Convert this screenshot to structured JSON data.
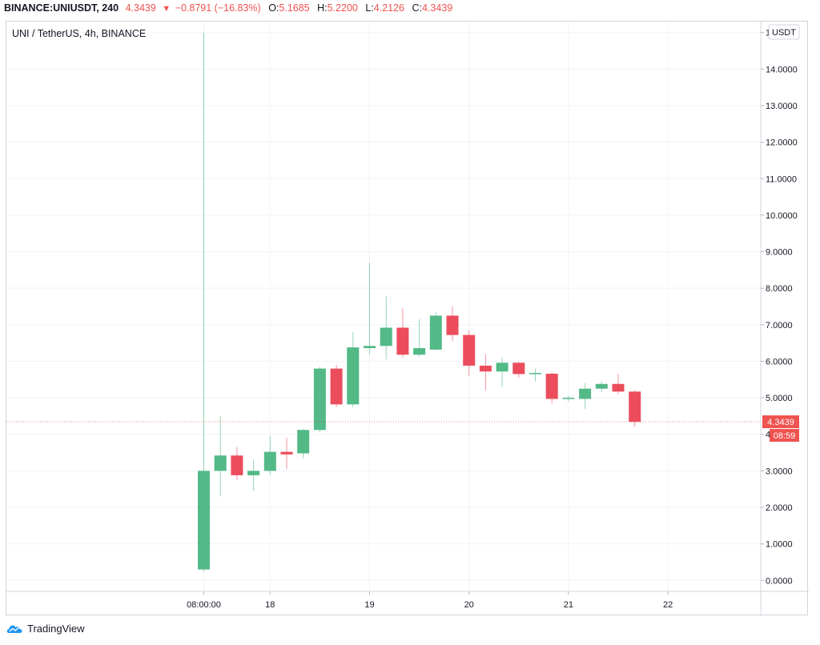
{
  "header": {
    "symbol": "BINANCE:UNIUSDT, 240",
    "last": "4.3439",
    "change": "−0.8791 (−16.83%)",
    "open_label": "O:",
    "open": "5.1685",
    "high_label": "H:",
    "high": "5.2200",
    "low_label": "L:",
    "low": "4.2126",
    "close_label": "C:",
    "close": "4.3439"
  },
  "legend": "UNI / TetherUS, 4h, BINANCE",
  "currency_button": "USDT",
  "price_badge": "4.3439",
  "countdown_badge": "08:59",
  "footer": {
    "brand": "TradingView",
    "logo_icon": "tradingview-logo-icon"
  },
  "colors": {
    "up": "#53b987",
    "down": "#eb4d5c",
    "grid": "#f0f3fa",
    "axis_text": "#131722",
    "badge": "#ef5350"
  },
  "chart_data": {
    "type": "candlestick",
    "symbol": "UNI / TetherUS",
    "interval": "4h",
    "exchange": "BINANCE",
    "ylim": [
      -0.3,
      15.3
    ],
    "y_ticks": [
      0,
      1,
      2,
      3,
      4,
      5,
      6,
      7,
      8,
      9,
      10,
      11,
      12,
      13,
      14,
      15
    ],
    "y_tick_labels": [
      "0.0000",
      "1.0000",
      "2.0000",
      "3.0000",
      "4.0000",
      "5.0000",
      "6.0000",
      "7.0000",
      "8.0000",
      "9.0000",
      "10.0000",
      "11.0000",
      "12.0000",
      "13.0000",
      "14.0000",
      "15.0000"
    ],
    "x_ticks": [
      {
        "index": 0,
        "label": "08:00:00"
      },
      {
        "index": 4,
        "label": "18"
      },
      {
        "index": 10,
        "label": "19"
      },
      {
        "index": 16,
        "label": "20"
      },
      {
        "index": 22,
        "label": "21"
      },
      {
        "index": 28,
        "label": "22"
      }
    ],
    "last_price": 4.3439,
    "candles": [
      {
        "o": 0.3,
        "h": 15.0,
        "l": 0.25,
        "c": 3.0
      },
      {
        "o": 3.0,
        "h": 4.5,
        "l": 2.3,
        "c": 3.42
      },
      {
        "o": 3.42,
        "h": 3.65,
        "l": 2.75,
        "c": 2.88
      },
      {
        "o": 2.88,
        "h": 3.3,
        "l": 2.45,
        "c": 3.0
      },
      {
        "o": 3.0,
        "h": 3.95,
        "l": 2.9,
        "c": 3.52
      },
      {
        "o": 3.52,
        "h": 3.9,
        "l": 3.05,
        "c": 3.45
      },
      {
        "o": 3.48,
        "h": 4.15,
        "l": 3.35,
        "c": 4.12
      },
      {
        "o": 4.12,
        "h": 5.85,
        "l": 4.05,
        "c": 5.8
      },
      {
        "o": 5.8,
        "h": 5.9,
        "l": 4.75,
        "c": 4.82
      },
      {
        "o": 4.82,
        "h": 6.8,
        "l": 4.75,
        "c": 6.38
      },
      {
        "o": 6.36,
        "h": 8.7,
        "l": 6.2,
        "c": 6.42
      },
      {
        "o": 6.42,
        "h": 7.78,
        "l": 6.05,
        "c": 6.92
      },
      {
        "o": 6.92,
        "h": 7.45,
        "l": 6.1,
        "c": 6.18
      },
      {
        "o": 6.18,
        "h": 7.15,
        "l": 6.12,
        "c": 6.36
      },
      {
        "o": 6.32,
        "h": 7.35,
        "l": 6.3,
        "c": 7.25
      },
      {
        "o": 7.25,
        "h": 7.5,
        "l": 6.55,
        "c": 6.72
      },
      {
        "o": 6.72,
        "h": 6.85,
        "l": 5.6,
        "c": 5.88
      },
      {
        "o": 5.88,
        "h": 6.2,
        "l": 5.2,
        "c": 5.72
      },
      {
        "o": 5.72,
        "h": 6.1,
        "l": 5.3,
        "c": 5.96
      },
      {
        "o": 5.96,
        "h": 5.98,
        "l": 5.55,
        "c": 5.65
      },
      {
        "o": 5.65,
        "h": 5.8,
        "l": 5.45,
        "c": 5.68
      },
      {
        "o": 5.66,
        "h": 5.7,
        "l": 4.85,
        "c": 4.97
      },
      {
        "o": 4.97,
        "h": 5.05,
        "l": 4.9,
        "c": 5.0
      },
      {
        "o": 4.97,
        "h": 5.4,
        "l": 4.7,
        "c": 5.25
      },
      {
        "o": 5.25,
        "h": 5.45,
        "l": 5.15,
        "c": 5.38
      },
      {
        "o": 5.38,
        "h": 5.65,
        "l": 5.1,
        "c": 5.17
      },
      {
        "o": 5.17,
        "h": 5.22,
        "l": 4.21,
        "c": 4.34
      }
    ]
  }
}
